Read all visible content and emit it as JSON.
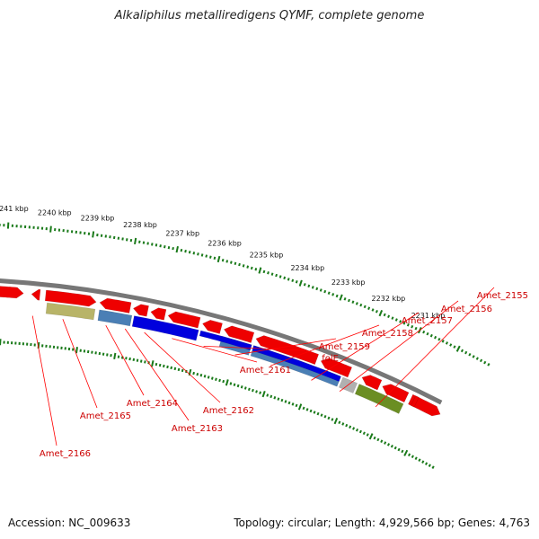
{
  "title": "Alkaliphilus metalliredigens QYMF, complete genome",
  "footer": {
    "accession": "Accession: NC_009633",
    "summary": "Topology: circular; Length: 4,929,566 bp; Genes: 4,763"
  },
  "scale_labels": [
    "2231 kbp",
    "2232 kbp",
    "2233 kbp",
    "2234 kbp",
    "2235 kbp",
    "2236 kbp",
    "2237 kbp",
    "2238 kbp",
    "2239 kbp",
    "2240 kbp",
    "2241 kbp"
  ],
  "gene_labels": [
    "Amet_2155",
    "Amet_2156",
    "Amet_2157",
    "Amet_2158",
    "Amet_2159",
    "folE",
    "Amet_2161",
    "Amet_2162",
    "Amet_2163",
    "Amet_2164",
    "Amet_2165",
    "Amet_2166"
  ],
  "colors": {
    "backbone": "#777777",
    "scale_ticks": "#1a7a1a",
    "red_gene": "#ee0000",
    "blue_gene": "#0000dd",
    "steelblue_gene": "#4a7fb5",
    "olive_gene": "#6b8e23",
    "khaki_gene": "#b8b468",
    "gray_gene": "#b0b0b0",
    "label_line": "#ff0000"
  }
}
